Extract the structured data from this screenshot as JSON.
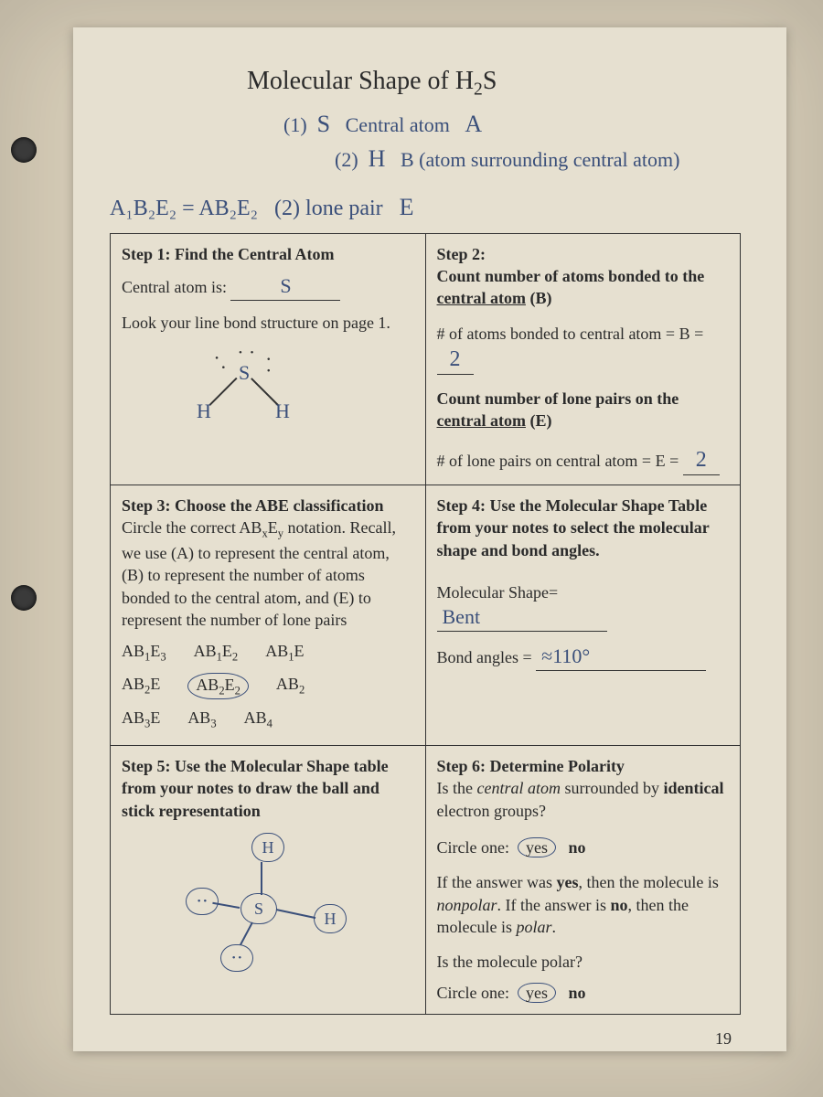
{
  "title_html": "Molecular Shape of H<sub>2</sub>S",
  "handnotes": {
    "n1_num": "(1)",
    "n1_sym": "S",
    "n1_txt": "Central atom",
    "n1_tag": "A",
    "n2_num": "(2)",
    "n2_sym": "H",
    "n2_txt": "B (atom surrounding central atom)",
    "n3_lhs": "A₁B₂E₂ = AB₂E₂",
    "n3_num": "(2)",
    "n3_txt": "lone pair",
    "n3_tag": "E"
  },
  "step1": {
    "title": "Step 1: Find the Central Atom",
    "label": "Central atom is:",
    "value": "S",
    "look": "Look your line bond structure on page 1.",
    "lewis": {
      "center": "S",
      "left": "H",
      "right": "H"
    }
  },
  "step2": {
    "title": "Step 2:",
    "sub": "Count number of atoms bonded to the <span class=\"u\">central atom</span> (B)",
    "bline": "# of atoms bonded to central atom = B =",
    "bval": "2",
    "lp_t": "Count number of lone pairs on the <span class=\"u\">central atom</span> (E)",
    "eline": "# of lone pairs on central atom = E =",
    "eval": "2"
  },
  "step3": {
    "title": "Step 3: Choose the ABE classification",
    "body": "Circle the correct AB<sub>x</sub>E<sub>y</sub> notation. Recall, we use (A) to represent the central atom, (B) to represent the number of atoms bonded to the central atom, and (E) to represent the number of lone pairs",
    "rows": [
      [
        "AB<sub>1</sub>E<sub>3</sub>",
        "AB<sub>1</sub>E<sub>2</sub>",
        "AB<sub>1</sub>E"
      ],
      [
        "AB<sub>2</sub>E",
        "AB<sub>2</sub>E<sub>2</sub>",
        "AB<sub>2</sub>"
      ],
      [
        "AB<sub>3</sub>E",
        "AB<sub>3</sub>",
        "AB<sub>4</sub>"
      ]
    ],
    "circled": "AB2E2"
  },
  "step4": {
    "title": "Step 4: Use the Molecular Shape Table from your notes to select the molecular shape and bond angles.",
    "shape_l": "Molecular Shape=",
    "shape_v": "Bent",
    "angle_l": "Bond angles =",
    "angle_v": "≈110°"
  },
  "step5": {
    "title": "Step 5:  Use the Molecular Shape table from your notes to draw the ball and stick representation"
  },
  "step6": {
    "title": "Step 6:  Determine Polarity",
    "q1": "Is the <span style=\"font-style:italic\">central atom</span> surrounded by <span class=\"b\">identical</span> electron groups?",
    "choose": "Circle one:",
    "yes": "yes",
    "no": "no",
    "explain": "If the answer was <span class=\"b\">yes</span>, then the molecule is <span style=\"font-style:italic\">nonpolar</span>. If the answer is <span class=\"b\">no</span>, then the molecule is <span style=\"font-style:italic\">polar</span>.",
    "q2": "Is the molecule polar?"
  },
  "pagenum": "19",
  "colors": {
    "ink": "#2b2b2b",
    "hand": "#3a4f7a",
    "paper": "#e6e0d0",
    "bg": "#c9bda8"
  }
}
